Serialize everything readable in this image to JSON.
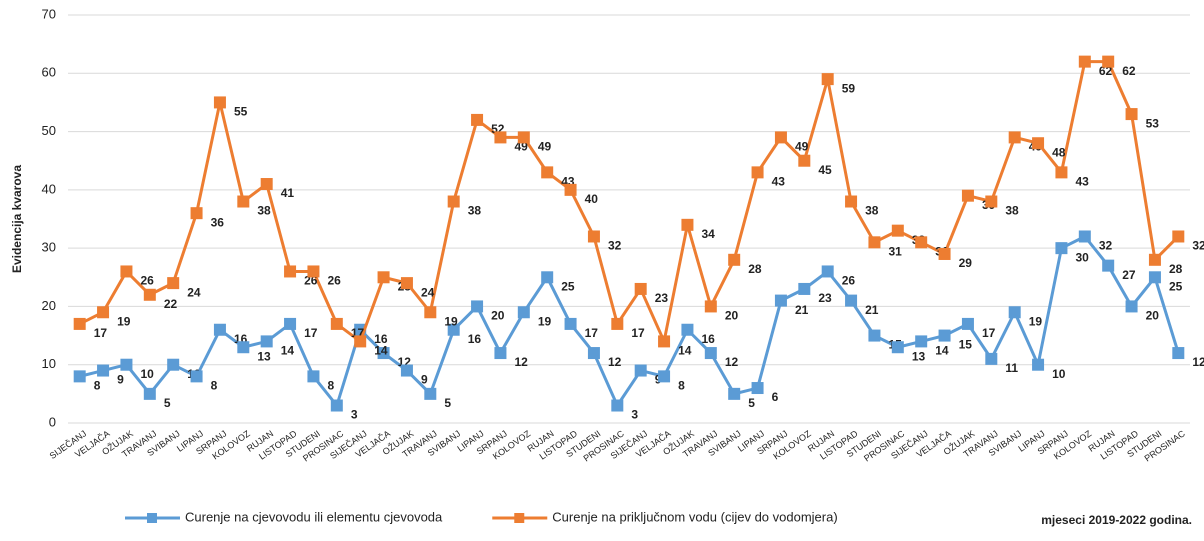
{
  "chart_data": {
    "type": "line",
    "y_label": "Evidencija kvarova",
    "x_label": "mjeseci 2019-2022 godina.",
    "categories": [
      "SIJEČANJ",
      "VELJAČA",
      "OŽUJAK",
      "TRAVANJ",
      "SVIBANJ",
      "LIPANJ",
      "SRPANJ",
      "KOLOVOZ",
      "RUJAN",
      "LISTOPAD",
      "STUDENI",
      "PROSINAC",
      "SIJEČANJ",
      "VELJAČA",
      "OŽUJAK",
      "TRAVANJ",
      "SVIBANJ",
      "LIPANJ",
      "SRPANJ",
      "KOLOVOZ",
      "RUJAN",
      "LISTOPAD",
      "STUDENI",
      "PROSINAC",
      "SIJEČANJ",
      "VELJAČA",
      "OŽUJAK",
      "TRAVANJ",
      "SVIBANJ",
      "LIPANJ",
      "SRPANJ",
      "KOLOVOZ",
      "RUJAN",
      "LISTOPAD",
      "STUDENI",
      "PROSINAC",
      "SIJEČANJ",
      "VELJAČA",
      "OŽUJAK",
      "TRAVANJ",
      "SVIBANJ",
      "LIPANJ",
      "SRPANJ",
      "KOLOVOZ",
      "RUJAN",
      "LISTOPAD",
      "STUDENI",
      "PROSINAC"
    ],
    "series": [
      {
        "name": "Curenje na cjevovodu ili elementu cjevovoda",
        "color": "#5b9bd5",
        "label_color": "#3f6fe0",
        "values": [
          8,
          9,
          10,
          5,
          10,
          8,
          16,
          13,
          14,
          17,
          8,
          3,
          16,
          12,
          9,
          5,
          16,
          20,
          12,
          19,
          25,
          17,
          12,
          3,
          9,
          8,
          16,
          12,
          5,
          6,
          21,
          23,
          26,
          21,
          15,
          13,
          14,
          15,
          17,
          11,
          19,
          10,
          30,
          32,
          27,
          20,
          25,
          12
        ]
      },
      {
        "name": "Curenje na priključnom vodu (cijev do vodomjera)",
        "color": "#ed7d31",
        "label_color": "#c8161d",
        "values": [
          17,
          19,
          26,
          22,
          24,
          36,
          55,
          38,
          41,
          26,
          26,
          17,
          14,
          25,
          24,
          19,
          38,
          52,
          49,
          49,
          43,
          40,
          32,
          17,
          23,
          14,
          34,
          20,
          28,
          43,
          49,
          45,
          59,
          38,
          31,
          33,
          31,
          29,
          39,
          38,
          49,
          48,
          43,
          62,
          62,
          53,
          28,
          32
        ]
      }
    ],
    "ylim": [
      0,
      70
    ],
    "yticks": [
      0,
      10,
      20,
      30,
      40,
      50,
      60,
      70
    ],
    "grid": true,
    "legend": "bottom"
  }
}
